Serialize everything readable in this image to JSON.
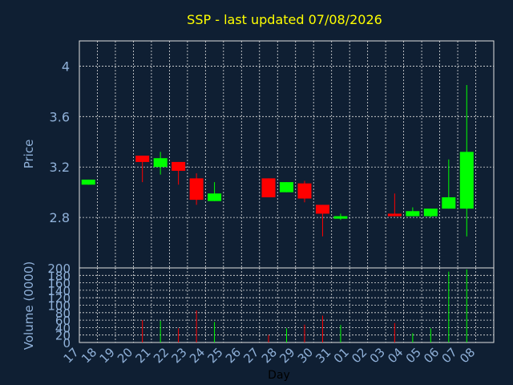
{
  "chart_data": {
    "type": "candlestick",
    "title": "SSP - last updated 07/08/2026",
    "xlabel": "Day",
    "price_panel": {
      "ylabel": "Price",
      "ylim": [
        2.4,
        4.2
      ],
      "yticks": [
        "4",
        "3.6",
        "3.2",
        "2.8"
      ],
      "ytick_values": [
        4.0,
        3.6,
        3.2,
        2.8
      ]
    },
    "volume_panel": {
      "ylabel": "Volume (0000)",
      "ylim": [
        0,
        200
      ],
      "yticks": [
        "200",
        "180",
        "160",
        "140",
        "120",
        "100",
        "80",
        "60",
        "40",
        "20",
        "0"
      ],
      "ytick_values": [
        200,
        180,
        160,
        140,
        120,
        100,
        80,
        60,
        40,
        20,
        0
      ]
    },
    "x_ticks": [
      "17",
      "18",
      "19",
      "20",
      "21",
      "22",
      "23",
      "24",
      "25",
      "26",
      "27",
      "28",
      "29",
      "30",
      "31",
      "01",
      "02",
      "03",
      "04",
      "05",
      "06",
      "07",
      "08"
    ],
    "candles": [
      {
        "x": "17",
        "open": 3.06,
        "close": 3.1,
        "high": 3.1,
        "low": 3.06,
        "volume": 0
      },
      {
        "x": "20",
        "open": 3.29,
        "close": 3.24,
        "high": 3.29,
        "low": 3.08,
        "volume": 60
      },
      {
        "x": "21",
        "open": 3.2,
        "close": 3.27,
        "high": 3.32,
        "low": 3.14,
        "volume": 58
      },
      {
        "x": "22",
        "open": 3.24,
        "close": 3.17,
        "high": 3.24,
        "low": 3.06,
        "volume": 38
      },
      {
        "x": "23",
        "open": 3.11,
        "close": 2.94,
        "high": 3.15,
        "low": 2.9,
        "volume": 86
      },
      {
        "x": "24",
        "open": 2.93,
        "close": 2.99,
        "high": 3.08,
        "low": 2.93,
        "volume": 55
      },
      {
        "x": "27",
        "open": 3.11,
        "close": 2.96,
        "high": 3.11,
        "low": 2.96,
        "volume": 20
      },
      {
        "x": "28",
        "open": 3.0,
        "close": 3.08,
        "high": 3.08,
        "low": 3.0,
        "volume": 38
      },
      {
        "x": "29",
        "open": 3.07,
        "close": 2.95,
        "high": 3.09,
        "low": 2.92,
        "volume": 48
      },
      {
        "x": "30",
        "open": 2.9,
        "close": 2.83,
        "high": 2.9,
        "low": 2.65,
        "volume": 72
      },
      {
        "x": "31",
        "open": 2.79,
        "close": 2.81,
        "high": 2.83,
        "low": 2.78,
        "volume": 47
      },
      {
        "x": "03",
        "open": 2.83,
        "close": 2.81,
        "high": 2.99,
        "low": 2.81,
        "volume": 52
      },
      {
        "x": "04",
        "open": 2.81,
        "close": 2.85,
        "high": 2.88,
        "low": 2.81,
        "volume": 25
      },
      {
        "x": "05",
        "open": 2.81,
        "close": 2.87,
        "high": 2.87,
        "low": 2.8,
        "volume": 38
      },
      {
        "x": "06",
        "open": 2.87,
        "close": 2.96,
        "high": 3.26,
        "low": 2.87,
        "volume": 190
      },
      {
        "x": "07",
        "open": 2.87,
        "close": 3.32,
        "high": 3.85,
        "low": 2.65,
        "volume": 196
      }
    ],
    "colors": {
      "background": "#0f1f33",
      "up": "#00ff00",
      "down": "#ff0000",
      "grid": "#e0e0e0",
      "axis_text": "#8fb0d8",
      "title": "#ffff00"
    },
    "grid": true
  }
}
